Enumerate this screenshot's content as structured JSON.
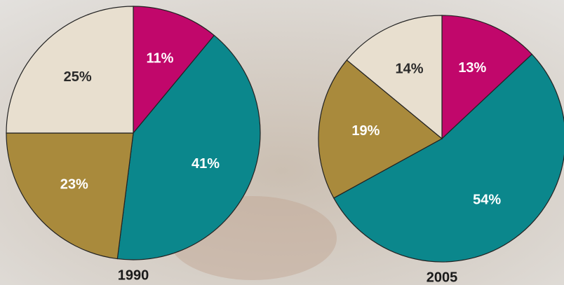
{
  "chart_data": [
    {
      "type": "pie",
      "title": "1990",
      "values": [
        11,
        41,
        23,
        25
      ],
      "value_labels": [
        "11%",
        "41%",
        "23%",
        "25%"
      ],
      "colors": [
        "#c1076b",
        "#0b878c",
        "#a98a3c",
        "#e8dfcf"
      ]
    },
    {
      "type": "pie",
      "title": "2005",
      "values": [
        13,
        54,
        19,
        14
      ],
      "value_labels": [
        "13%",
        "54%",
        "19%",
        "14%"
      ],
      "colors": [
        "#c1076b",
        "#0b878c",
        "#a98a3c",
        "#e8dfcf"
      ]
    }
  ]
}
